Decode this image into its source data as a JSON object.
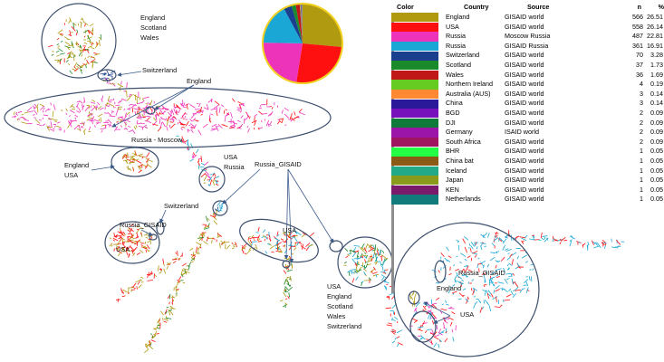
{
  "legend": {
    "headers": {
      "color": "Color",
      "country": "Country",
      "source": "Source",
      "n": "n",
      "pct": "%"
    },
    "rows": [
      {
        "color": "#b09a10",
        "country": "England",
        "source": "GISAID world",
        "n": "566",
        "pct": "26.51"
      },
      {
        "color": "#ff1010",
        "country": "USA",
        "source": "GISAID world",
        "n": "558",
        "pct": "26.14"
      },
      {
        "color": "#ee33bb",
        "country": "Russia",
        "source": "Moscow Russia",
        "n": "487",
        "pct": "22.81"
      },
      {
        "color": "#1aa7d6",
        "country": "Russia",
        "source": "GISAID Russia",
        "n": "361",
        "pct": "16.91"
      },
      {
        "color": "#1a3f8f",
        "country": "Switzerland",
        "source": "GISAID world",
        "n": "70",
        "pct": "3.28"
      },
      {
        "color": "#1a8a2a",
        "country": "Scotland",
        "source": "GISAID world",
        "n": "37",
        "pct": "1.73"
      },
      {
        "color": "#c01818",
        "country": "Wales",
        "source": "GISAID world",
        "n": "36",
        "pct": "1.69"
      },
      {
        "color": "#66cc22",
        "country": "Northern Ireland",
        "source": "GISAID world",
        "n": "4",
        "pct": "0.19"
      },
      {
        "color": "#ff8833",
        "country": "Australia (AUS)",
        "source": "GISAID world",
        "n": "3",
        "pct": "0.14"
      },
      {
        "color": "#2a1a99",
        "country": "China",
        "source": "GISAID world",
        "n": "3",
        "pct": "0.14"
      },
      {
        "color": "#7711bb",
        "country": "BGD",
        "source": "GISAID world",
        "n": "2",
        "pct": "0.09"
      },
      {
        "color": "#0f7a3a",
        "country": "DJI",
        "source": "GISAID world",
        "n": "2",
        "pct": "0.09"
      },
      {
        "color": "#9b16a8",
        "country": "Germany",
        "source": "ISAID world",
        "n": "2",
        "pct": "0.09"
      },
      {
        "color": "#a01560",
        "country": "South Africa",
        "source": "GISAID world",
        "n": "2",
        "pct": "0.09"
      },
      {
        "color": "#22ff44",
        "country": "BHR",
        "source": "GISAID world",
        "n": "1",
        "pct": "0.05"
      },
      {
        "color": "#8a5a16",
        "country": "China bat",
        "source": "GISAID world",
        "n": "1",
        "pct": "0.05"
      },
      {
        "color": "#22aa88",
        "country": "Iceland",
        "source": "GISAID world",
        "n": "1",
        "pct": "0.05"
      },
      {
        "color": "#8a9a1a",
        "country": "Japan",
        "source": "GISAID world",
        "n": "1",
        "pct": "0.05"
      },
      {
        "color": "#7a1a6a",
        "country": "KEN",
        "source": "GISAID world",
        "n": "1",
        "pct": "0.05"
      },
      {
        "color": "#117a7a",
        "country": "Netherlands",
        "source": "GISAID world",
        "n": "1",
        "pct": "0.05"
      }
    ]
  },
  "pie": {
    "outline_color": "#f2d020"
  },
  "labels": {
    "top_cluster": [
      "England",
      "Scotland",
      "Wales"
    ],
    "switzerland_top": "Switzerland",
    "england_top": "England",
    "russia_moscow": "Russia - Moscow",
    "england_usa": [
      "England",
      "USA"
    ],
    "usa_russia": [
      "USA",
      "Russia"
    ],
    "russia_gisaid_mid": "Russia_GISAID",
    "russia_gisaid_left": "Russia_GISAID",
    "switzerland_left": "Switzerland",
    "usa_left": "USA",
    "usa_center": "USA",
    "multi_country": [
      "USA",
      "England",
      "Scotland",
      "Wales",
      "Switzerland"
    ],
    "russia_gisaid_right": "Russia_GISAID",
    "england_right": "England",
    "usa_right": "USA"
  }
}
